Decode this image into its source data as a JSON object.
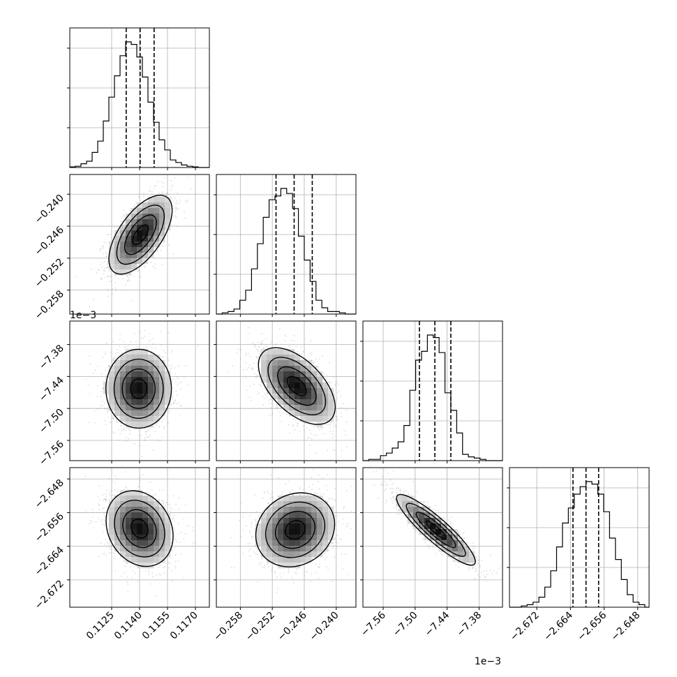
{
  "chart_data": {
    "type": "corner",
    "title": "",
    "dimensions": [
      {
        "index": 0,
        "xlabel": "",
        "ylabel": "",
        "range": [
          0.11025,
          0.11775
        ],
        "ticks": [
          0.1125,
          0.114,
          0.1155,
          0.117
        ],
        "tick_labels": [
          "0.1125",
          "0.1140",
          "0.1155",
          "0.1170"
        ],
        "offset_label": "",
        "quantiles": {
          "q16": 0.11328,
          "q50": 0.11403,
          "q84": 0.11478
        },
        "histogram_bin_edges": [
          0.11025,
          0.11055,
          0.11085,
          0.11115,
          0.11145,
          0.11175,
          0.11205,
          0.11235,
          0.11265,
          0.11295,
          0.11325,
          0.11355,
          0.11385,
          0.11415,
          0.11445,
          0.11475,
          0.11505,
          0.11535,
          0.11565,
          0.11595,
          0.11625,
          0.11655,
          0.11685,
          0.11715,
          0.11745,
          0.11775
        ],
        "histogram_counts": [
          0.005,
          0.01,
          0.03,
          0.05,
          0.12,
          0.21,
          0.37,
          0.56,
          0.73,
          0.89,
          1.0,
          0.98,
          0.88,
          0.72,
          0.52,
          0.36,
          0.22,
          0.14,
          0.06,
          0.04,
          0.02,
          0.01,
          0.005,
          0.0,
          0.0
        ]
      },
      {
        "index": 1,
        "xlabel": "",
        "ylabel": "",
        "range": [
          -0.2625,
          -0.2363
        ],
        "ticks": [
          -0.258,
          -0.252,
          -0.246,
          -0.24
        ],
        "tick_labels": [
          "−0.258",
          "−0.252",
          "−0.246",
          "−0.240"
        ],
        "offset_label": "",
        "quantiles": {
          "q16": -0.2513,
          "q50": -0.2479,
          "q84": -0.2445
        },
        "histogram_bin_edges": [
          -0.2625,
          -0.2614,
          -0.2603,
          -0.2592,
          -0.2581,
          -0.257,
          -0.2559,
          -0.2548,
          -0.2537,
          -0.2526,
          -0.2515,
          -0.2504,
          -0.2493,
          -0.2482,
          -0.2471,
          -0.246,
          -0.2449,
          -0.2438,
          -0.2427,
          -0.2416,
          -0.2405,
          -0.2394,
          -0.2383,
          -0.2372,
          -0.2363
        ],
        "histogram_counts": [
          0.0,
          0.01,
          0.02,
          0.04,
          0.11,
          0.19,
          0.36,
          0.56,
          0.77,
          0.91,
          0.94,
          1.0,
          0.96,
          0.84,
          0.62,
          0.43,
          0.26,
          0.11,
          0.05,
          0.02,
          0.02,
          0.01,
          0.0,
          0.0
        ]
      },
      {
        "index": 2,
        "xlabel": "",
        "ylabel": "",
        "range": [
          -7.598,
          -7.336
        ],
        "ticks": [
          -7.56,
          -7.5,
          -7.44,
          -7.38
        ],
        "tick_labels": [
          "−7.56",
          "−7.50",
          "−7.44",
          "−7.38"
        ],
        "offset_label": "1e−3",
        "quantiles": {
          "q16": -7.492,
          "q50": -7.463,
          "q84": -7.433
        },
        "histogram_bin_edges": [
          -7.598,
          -7.587,
          -7.576,
          -7.565,
          -7.554,
          -7.543,
          -7.532,
          -7.521,
          -7.51,
          -7.499,
          -7.488,
          -7.477,
          -7.466,
          -7.455,
          -7.444,
          -7.433,
          -7.422,
          -7.411,
          -7.4,
          -7.389,
          -7.378,
          -7.367,
          -7.356,
          -7.345,
          -7.336
        ],
        "histogram_counts": [
          0.0,
          0.01,
          0.01,
          0.04,
          0.06,
          0.1,
          0.15,
          0.28,
          0.56,
          0.8,
          0.87,
          1.0,
          0.98,
          0.86,
          0.54,
          0.4,
          0.22,
          0.05,
          0.03,
          0.02,
          0.01,
          0.0,
          0.0,
          0.0
        ]
      },
      {
        "index": 3,
        "xlabel": "",
        "ylabel": "",
        "range": [
          -2.6785,
          -2.6453
        ],
        "ticks": [
          -2.672,
          -2.664,
          -2.656,
          -2.648
        ],
        "tick_labels": [
          "−2.672",
          "−2.664",
          "−2.656",
          "−2.648"
        ],
        "offset_label": "1e−3",
        "quantiles": {
          "q16": -2.6634,
          "q50": -2.6603,
          "q84": -2.6573
        },
        "histogram_bin_edges": [
          -2.6785,
          -2.6771,
          -2.6757,
          -2.6743,
          -2.6729,
          -2.6715,
          -2.6701,
          -2.6687,
          -2.6673,
          -2.6659,
          -2.6645,
          -2.6631,
          -2.6617,
          -2.6603,
          -2.6589,
          -2.6575,
          -2.6561,
          -2.6547,
          -2.6533,
          -2.6519,
          -2.6505,
          -2.6491,
          -2.6477,
          -2.6463,
          -2.6453
        ],
        "histogram_counts": [
          0.0,
          0.0,
          0.01,
          0.02,
          0.04,
          0.08,
          0.16,
          0.29,
          0.48,
          0.67,
          0.79,
          0.9,
          0.96,
          1.0,
          0.98,
          0.9,
          0.76,
          0.55,
          0.38,
          0.22,
          0.1,
          0.04,
          0.02,
          0.0
        ]
      }
    ],
    "pairs": [
      {
        "x": 0,
        "y": 1,
        "mean": [
          0.11405,
          -0.2476
        ],
        "sd": [
          0.00085,
          0.0037
        ],
        "corr": 0.62
      },
      {
        "x": 0,
        "y": 2,
        "mean": [
          0.11395,
          -7.463
        ],
        "sd": [
          0.00088,
          0.037
        ],
        "corr": 0.0
      },
      {
        "x": 1,
        "y": 2,
        "mean": [
          -0.2474,
          -7.458
        ],
        "sd": [
          0.0036,
          0.036
        ],
        "corr": -0.55
      },
      {
        "x": 0,
        "y": 3,
        "mean": [
          0.114,
          -2.6598
        ],
        "sd": [
          0.0009,
          0.0045
        ],
        "corr": -0.2
      },
      {
        "x": 1,
        "y": 3,
        "mean": [
          -0.2477,
          -2.6601
        ],
        "sd": [
          0.0037,
          0.0044
        ],
        "corr": 0.15
      },
      {
        "x": 2,
        "y": 3,
        "mean": [
          -7.461,
          -2.6601
        ],
        "sd": [
          0.037,
          0.0042
        ],
        "corr": -0.9
      }
    ],
    "contour_levels_sigma": [
      0.5,
      1.0,
      1.5,
      2.0
    ],
    "grid": true,
    "legend": "none"
  },
  "colors": {
    "axes": "#000000",
    "grid": "#b0b0b0",
    "points": "#9a9a9a",
    "density_dark": "#000000",
    "density_light": "#ffffff",
    "contour": "#000000"
  }
}
